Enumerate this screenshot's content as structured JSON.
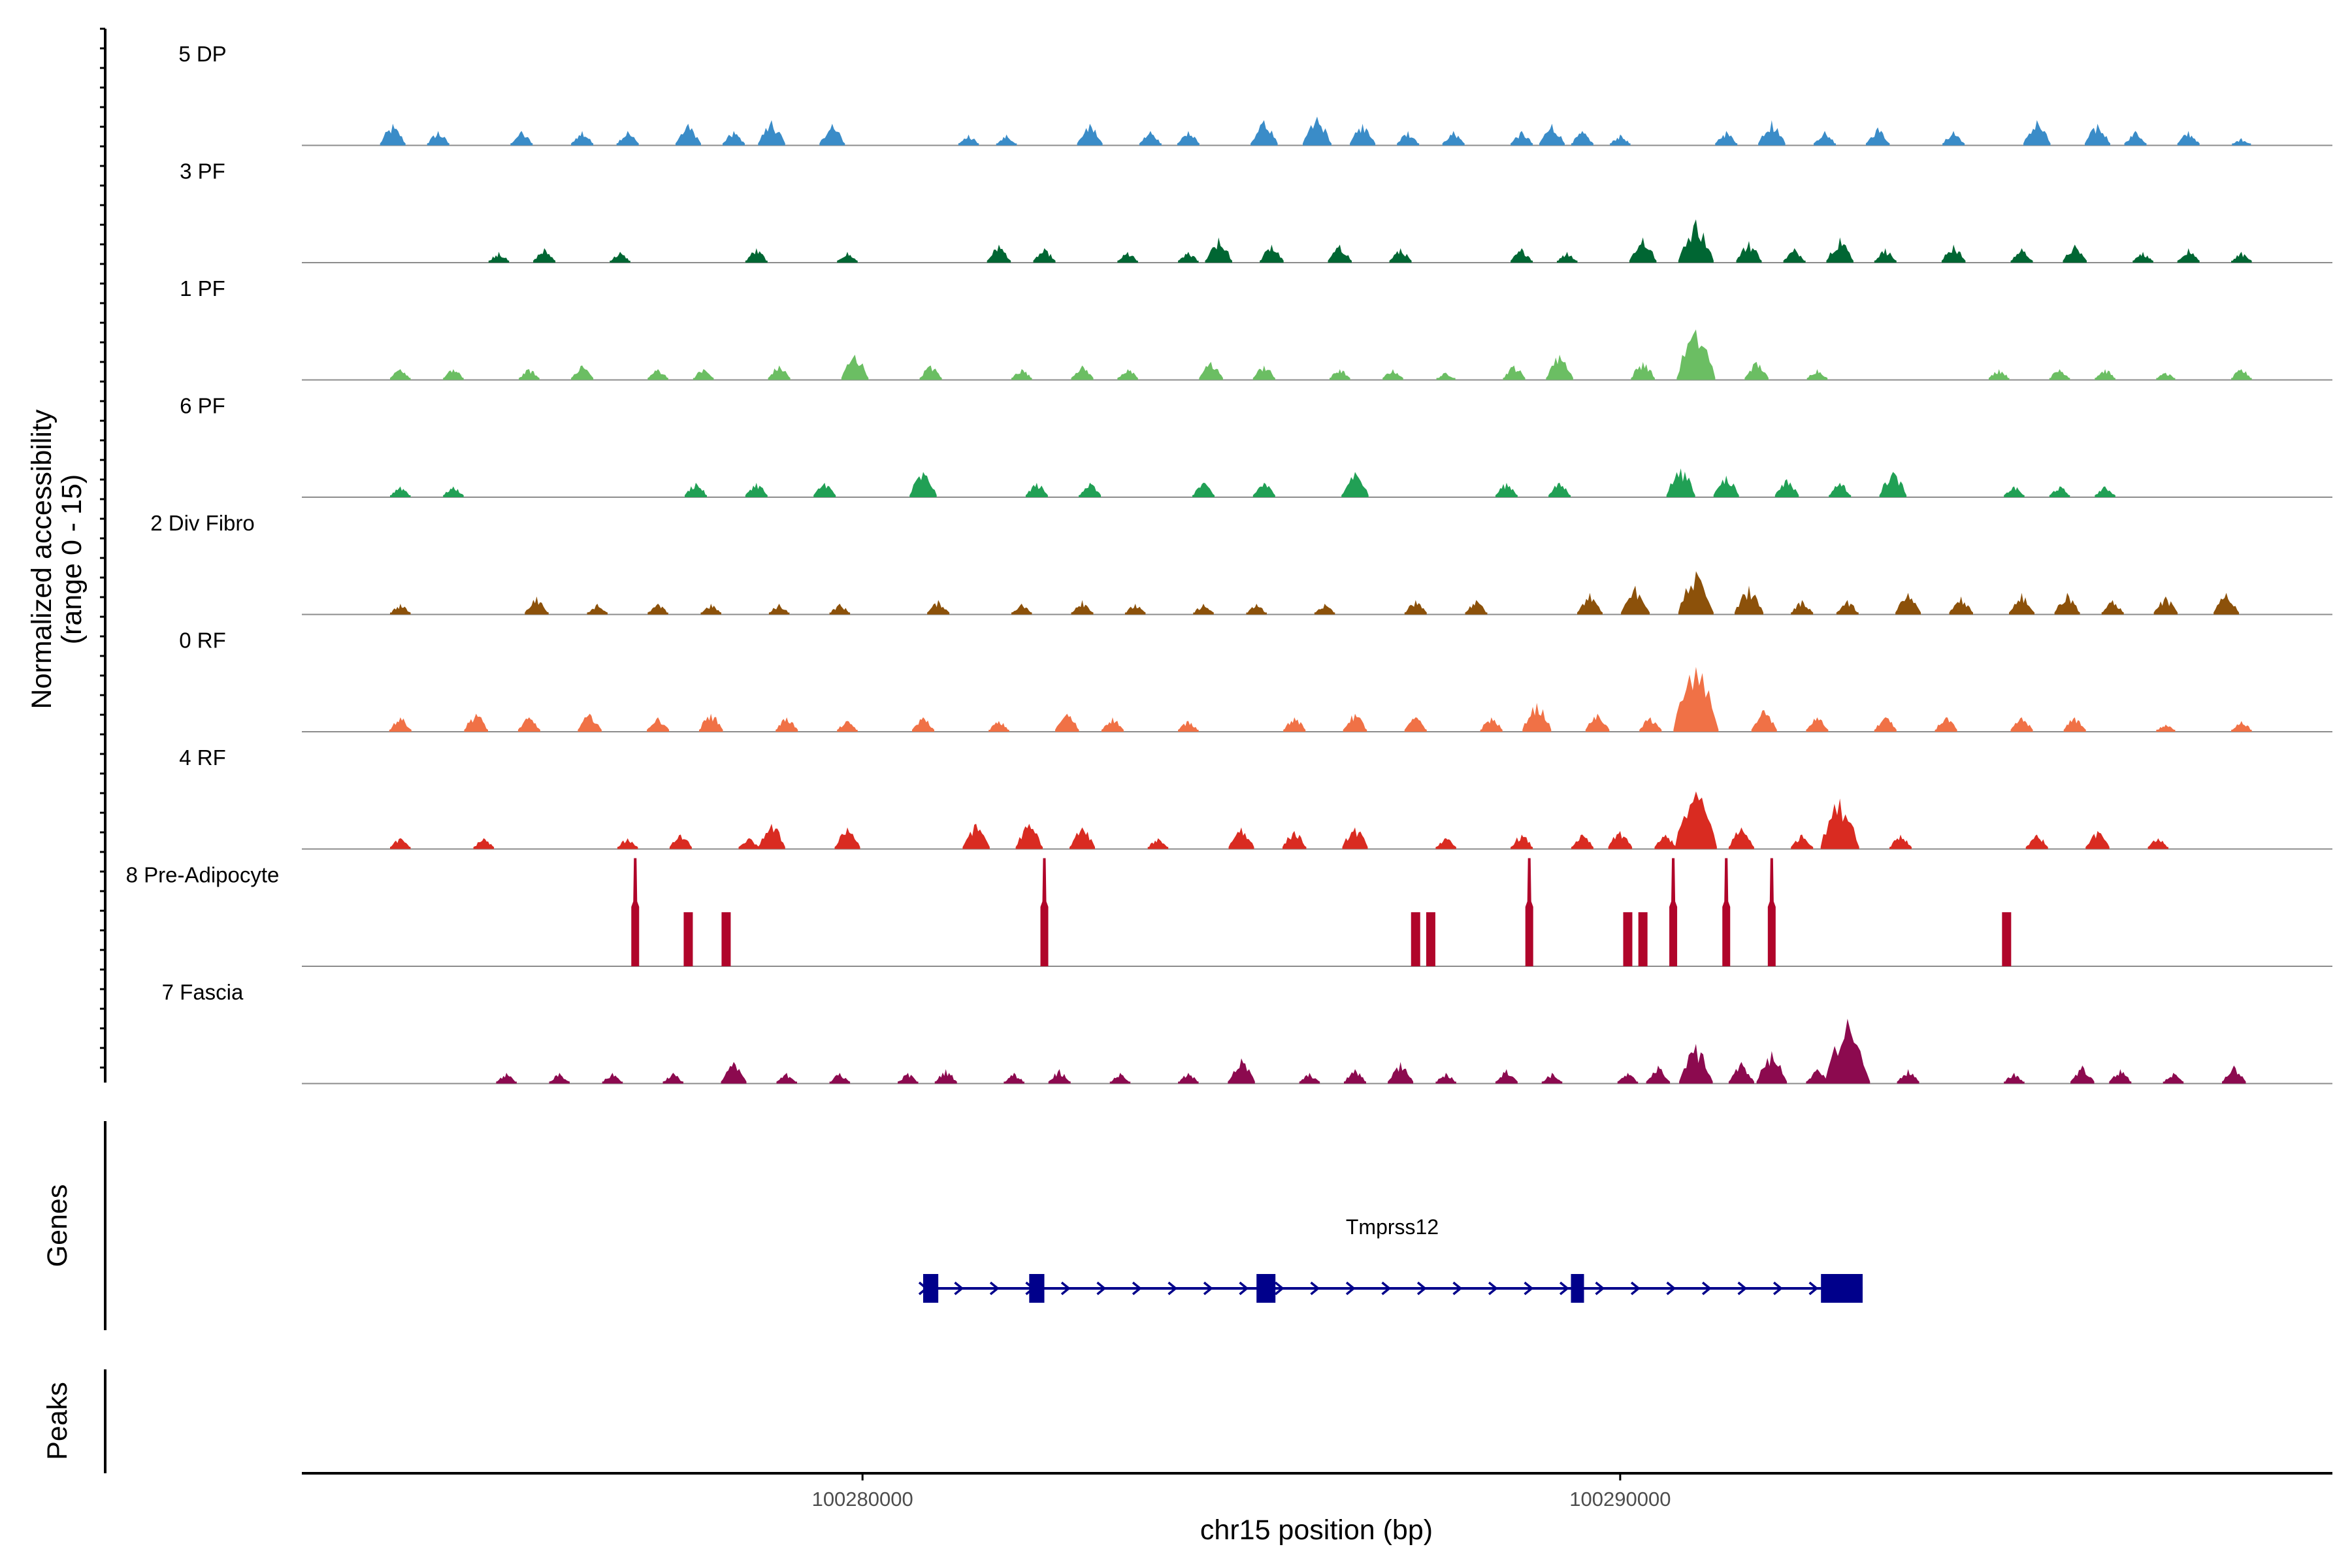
{
  "chart_data": {
    "type": "area",
    "title": "",
    "ylabel": "Normalized accessibility",
    "ylabel_range": "(range 0 - 15)",
    "ylim": [
      0,
      15
    ],
    "xlabel": "chr15 position (bp)",
    "xlim": [
      100272600,
      100299400
    ],
    "x_ticks": [
      100280000,
      100290000
    ],
    "x_tick_labels": [
      "100280000",
      "100290000"
    ],
    "genes_label": "Genes",
    "peaks_label": "Peaks",
    "gene": {
      "name": "Tmprss12",
      "strand": "+",
      "start": 100280800,
      "end": 100293200,
      "exons": [
        [
          100280800,
          100281000
        ],
        [
          100282200,
          100282400
        ],
        [
          100285200,
          100285450
        ],
        [
          100289350,
          100289500
        ],
        [
          100292650,
          100293200
        ]
      ]
    },
    "series": [
      {
        "name": "5 DP",
        "color": "#3A8CC8",
        "spikiness": 2.0,
        "peaks": [
          [
            100273800,
            3.0
          ],
          [
            100274400,
            2.0
          ],
          [
            100275500,
            2.0
          ],
          [
            100276300,
            2.0
          ],
          [
            100276900,
            2.0
          ],
          [
            100277700,
            3.0
          ],
          [
            100278300,
            2.0
          ],
          [
            100278800,
            3.5
          ],
          [
            100279600,
            3.0
          ],
          [
            100281400,
            1.5
          ],
          [
            100281900,
            1.5
          ],
          [
            100283000,
            3.0
          ],
          [
            100283800,
            2.0
          ],
          [
            100284300,
            2.0
          ],
          [
            100285300,
            3.5
          ],
          [
            100286000,
            4.0
          ],
          [
            100286600,
            3.0
          ],
          [
            100287200,
            2.0
          ],
          [
            100287800,
            2.0
          ],
          [
            100288700,
            2.0
          ],
          [
            100289100,
            3.0
          ],
          [
            100289500,
            2.0
          ],
          [
            100290000,
            1.5
          ],
          [
            100291400,
            2.0
          ],
          [
            100292000,
            3.5
          ],
          [
            100292700,
            2.0
          ],
          [
            100293400,
            2.5
          ],
          [
            100294400,
            2.0
          ],
          [
            100295500,
            3.5
          ],
          [
            100296300,
            3.0
          ],
          [
            100296800,
            2.0
          ],
          [
            100297500,
            2.0
          ],
          [
            100298200,
            1.0
          ]
        ]
      },
      {
        "name": "3 PF",
        "color": "#006633",
        "spikiness": 2.0,
        "peaks": [
          [
            100275200,
            1.5
          ],
          [
            100275800,
            2.0
          ],
          [
            100276800,
            1.5
          ],
          [
            100278600,
            2.0
          ],
          [
            100279800,
            1.5
          ],
          [
            100281800,
            2.5
          ],
          [
            100282400,
            2.0
          ],
          [
            100283500,
            1.5
          ],
          [
            100284300,
            1.5
          ],
          [
            100284700,
            3.5
          ],
          [
            100285400,
            2.5
          ],
          [
            100286300,
            2.5
          ],
          [
            100287100,
            2.0
          ],
          [
            100288700,
            2.0
          ],
          [
            100289300,
            1.5
          ],
          [
            100290300,
            3.5
          ],
          [
            100291000,
            6.0
          ],
          [
            100291700,
            3.0
          ],
          [
            100292300,
            2.0
          ],
          [
            100292900,
            3.5
          ],
          [
            100293500,
            2.0
          ],
          [
            100294400,
            2.5
          ],
          [
            100295300,
            2.0
          ],
          [
            100296000,
            2.5
          ],
          [
            100296900,
            1.5
          ],
          [
            100297500,
            2.0
          ],
          [
            100298200,
            1.5
          ]
        ]
      },
      {
        "name": "1 PF",
        "color": "#6BBE63",
        "spikiness": 1.5,
        "peaks": [
          [
            100273900,
            1.5
          ],
          [
            100274600,
            1.5
          ],
          [
            100275600,
            1.5
          ],
          [
            100276300,
            2.0
          ],
          [
            100277300,
            1.5
          ],
          [
            100277900,
            1.5
          ],
          [
            100278900,
            2.0
          ],
          [
            100279900,
            3.5
          ],
          [
            100280900,
            2.0
          ],
          [
            100282100,
            1.5
          ],
          [
            100282900,
            2.0
          ],
          [
            100283500,
            1.5
          ],
          [
            100284600,
            2.5
          ],
          [
            100285300,
            2.0
          ],
          [
            100286300,
            1.5
          ],
          [
            100287000,
            1.5
          ],
          [
            100287700,
            1.0
          ],
          [
            100288600,
            2.0
          ],
          [
            100289200,
            3.5
          ],
          [
            100290300,
            2.5
          ],
          [
            100291000,
            7.0
          ],
          [
            100291800,
            2.5
          ],
          [
            100292600,
            1.5
          ],
          [
            100295000,
            1.5
          ],
          [
            100295800,
            1.5
          ],
          [
            100296400,
            1.5
          ],
          [
            100297200,
            1.0
          ],
          [
            100298200,
            1.5
          ]
        ]
      },
      {
        "name": "6 PF",
        "color": "#21A055",
        "spikiness": 1.2,
        "peaks": [
          [
            100273900,
            1.5
          ],
          [
            100274600,
            1.5
          ],
          [
            100277800,
            2.0
          ],
          [
            100278600,
            2.0
          ],
          [
            100279500,
            2.0
          ],
          [
            100280800,
            3.5
          ],
          [
            100282300,
            2.0
          ],
          [
            100283000,
            2.0
          ],
          [
            100284500,
            2.0
          ],
          [
            100285300,
            2.0
          ],
          [
            100286500,
            3.5
          ],
          [
            100288500,
            2.0
          ],
          [
            100289200,
            2.0
          ],
          [
            100290800,
            4.0
          ],
          [
            100291400,
            3.0
          ],
          [
            100292200,
            2.5
          ],
          [
            100292900,
            2.0
          ],
          [
            100293600,
            3.5
          ],
          [
            100295200,
            1.5
          ],
          [
            100295800,
            1.5
          ],
          [
            100296400,
            1.5
          ]
        ]
      },
      {
        "name": "2 Div Fibro",
        "color": "#8C510A",
        "spikiness": 1.6,
        "peaks": [
          [
            100273900,
            1.5
          ],
          [
            100275700,
            2.5
          ],
          [
            100276500,
            1.5
          ],
          [
            100277300,
            1.5
          ],
          [
            100278000,
            1.5
          ],
          [
            100278900,
            1.5
          ],
          [
            100279700,
            1.5
          ],
          [
            100281000,
            2.0
          ],
          [
            100282100,
            1.5
          ],
          [
            100282900,
            2.0
          ],
          [
            100283600,
            1.5
          ],
          [
            100284500,
            1.5
          ],
          [
            100285200,
            1.5
          ],
          [
            100286100,
            1.5
          ],
          [
            100287300,
            2.0
          ],
          [
            100288100,
            2.0
          ],
          [
            100289600,
            3.0
          ],
          [
            100290200,
            4.0
          ],
          [
            100291000,
            6.0
          ],
          [
            100291700,
            4.0
          ],
          [
            100292400,
            2.0
          ],
          [
            100293000,
            2.0
          ],
          [
            100293800,
            3.0
          ],
          [
            100294500,
            2.5
          ],
          [
            100295300,
            3.0
          ],
          [
            100295900,
            3.0
          ],
          [
            100296500,
            2.0
          ],
          [
            100297200,
            2.5
          ],
          [
            100298000,
            3.0
          ]
        ]
      },
      {
        "name": "0 RF",
        "color": "#F07146",
        "spikiness": 1.5,
        "peaks": [
          [
            100273900,
            2.0
          ],
          [
            100274900,
            2.5
          ],
          [
            100275600,
            2.0
          ],
          [
            100276400,
            2.5
          ],
          [
            100277300,
            2.0
          ],
          [
            100278000,
            2.5
          ],
          [
            100279000,
            2.0
          ],
          [
            100279800,
            1.5
          ],
          [
            100280800,
            2.0
          ],
          [
            100281800,
            1.5
          ],
          [
            100282700,
            2.5
          ],
          [
            100283300,
            2.0
          ],
          [
            100284300,
            1.5
          ],
          [
            100285700,
            2.0
          ],
          [
            100286500,
            2.5
          ],
          [
            100287300,
            2.0
          ],
          [
            100288300,
            2.0
          ],
          [
            100288900,
            4.0
          ],
          [
            100289700,
            2.5
          ],
          [
            100290400,
            2.0
          ],
          [
            100291000,
            9.0
          ],
          [
            100291900,
            3.0
          ],
          [
            100292600,
            2.0
          ],
          [
            100293500,
            2.0
          ],
          [
            100294300,
            2.0
          ],
          [
            100295300,
            2.0
          ],
          [
            100296000,
            2.0
          ],
          [
            100297200,
            1.0
          ],
          [
            100298200,
            1.5
          ]
        ]
      },
      {
        "name": "4 RF",
        "color": "#D92B21",
        "spikiness": 1.5,
        "peaks": [
          [
            100273900,
            1.5
          ],
          [
            100275000,
            1.5
          ],
          [
            100276900,
            1.5
          ],
          [
            100277600,
            2.0
          ],
          [
            100278500,
            1.5
          ],
          [
            100278800,
            3.5
          ],
          [
            100279800,
            3.0
          ],
          [
            100281500,
            3.5
          ],
          [
            100282200,
            3.5
          ],
          [
            100282900,
            3.0
          ],
          [
            100283900,
            1.5
          ],
          [
            100285000,
            3.0
          ],
          [
            100285700,
            2.5
          ],
          [
            100286500,
            3.0
          ],
          [
            100287700,
            1.5
          ],
          [
            100288700,
            2.0
          ],
          [
            100289500,
            2.0
          ],
          [
            100290000,
            2.5
          ],
          [
            100290600,
            2.0
          ],
          [
            100291000,
            8.0
          ],
          [
            100291600,
            3.0
          ],
          [
            100292400,
            2.0
          ],
          [
            100292900,
            7.0
          ],
          [
            100293700,
            2.0
          ],
          [
            100295500,
            2.0
          ],
          [
            100296300,
            2.5
          ],
          [
            100297100,
            1.5
          ]
        ]
      },
      {
        "name": "8 Pre-Adipocyte",
        "color": "#B0052A",
        "spikiness": 0.0,
        "peaks": [
          [
            100277000,
            15.0
          ],
          [
            100277700,
            7.5
          ],
          [
            100278200,
            7.5
          ],
          [
            100282400,
            15.0
          ],
          [
            100287300,
            7.5
          ],
          [
            100287500,
            7.5
          ],
          [
            100288800,
            15.0
          ],
          [
            100290100,
            7.5
          ],
          [
            100290300,
            7.5
          ],
          [
            100290700,
            15.0
          ],
          [
            100291400,
            15.0
          ],
          [
            100292000,
            15.0
          ],
          [
            100295100,
            7.5
          ]
        ]
      },
      {
        "name": "7 Fascia",
        "color": "#8C0A4F",
        "spikiness": 1.6,
        "peaks": [
          [
            100275300,
            1.5
          ],
          [
            100276000,
            1.5
          ],
          [
            100276700,
            1.5
          ],
          [
            100277500,
            1.5
          ],
          [
            100278300,
            3.0
          ],
          [
            100279000,
            1.5
          ],
          [
            100279700,
            1.5
          ],
          [
            100280600,
            1.5
          ],
          [
            100281100,
            2.0
          ],
          [
            100282000,
            1.5
          ],
          [
            100282600,
            2.0
          ],
          [
            100283400,
            1.5
          ],
          [
            100284300,
            1.5
          ],
          [
            100285000,
            3.5
          ],
          [
            100285900,
            1.5
          ],
          [
            100286500,
            2.0
          ],
          [
            100287100,
            3.0
          ],
          [
            100287700,
            1.5
          ],
          [
            100288500,
            2.0
          ],
          [
            100289100,
            1.5
          ],
          [
            100290100,
            1.5
          ],
          [
            100290500,
            2.5
          ],
          [
            100291000,
            5.5
          ],
          [
            100291600,
            3.0
          ],
          [
            100292000,
            4.5
          ],
          [
            100292600,
            2.0
          ],
          [
            100293000,
            9.0
          ],
          [
            100293800,
            2.0
          ],
          [
            100295200,
            1.5
          ],
          [
            100296100,
            2.5
          ],
          [
            100296600,
            2.0
          ],
          [
            100297300,
            1.5
          ],
          [
            100298100,
            2.5
          ]
        ]
      }
    ]
  }
}
